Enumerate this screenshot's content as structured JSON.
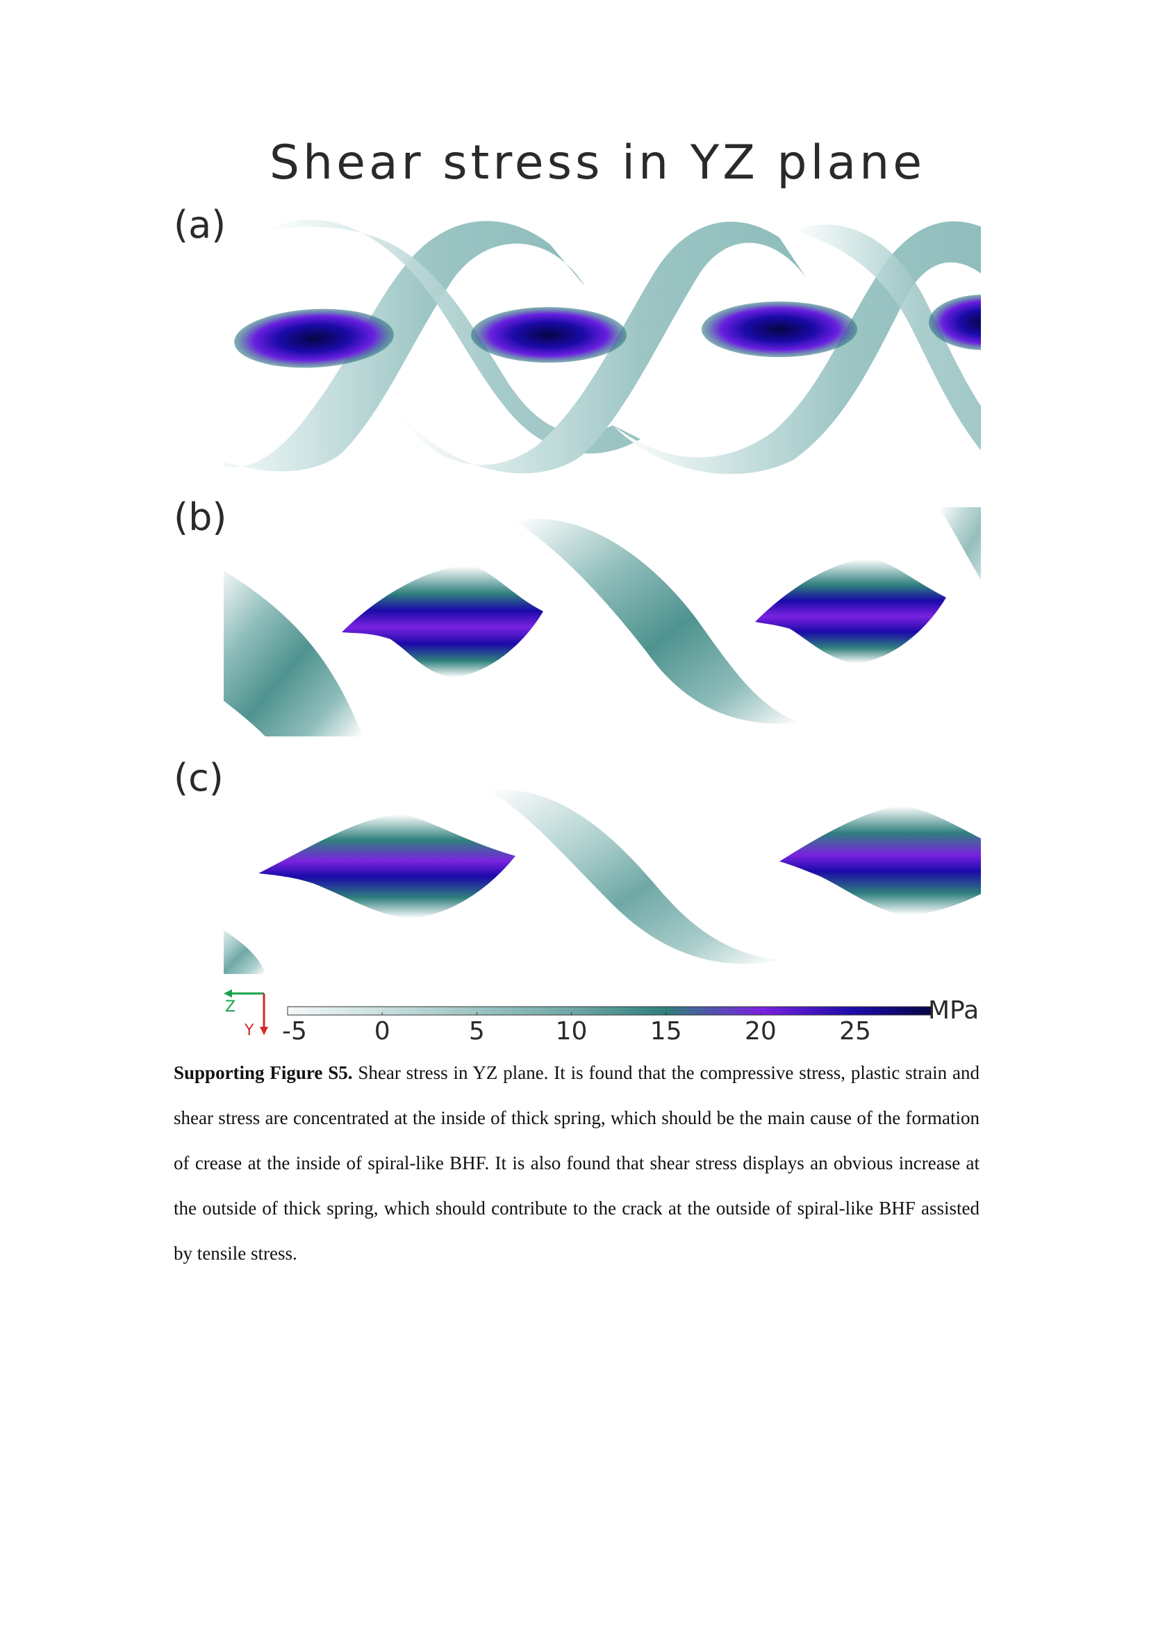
{
  "figure": {
    "title": "Shear stress in YZ plane",
    "panels": [
      {
        "label": "(a)"
      },
      {
        "label": "(b)"
      },
      {
        "label": "(c)"
      }
    ],
    "axes": {
      "horizontal": "Z",
      "vertical": "Y"
    },
    "colorbar": {
      "unit": "MPa",
      "ticks": [
        "-5",
        "0",
        "5",
        "10",
        "15",
        "20",
        "25"
      ],
      "range": [
        -5,
        29
      ],
      "stops": [
        {
          "value": -5,
          "color": "#f4f8f8"
        },
        {
          "value": 0,
          "color": "#c9dfdf"
        },
        {
          "value": 10,
          "color": "#6fa8a6"
        },
        {
          "value": 15,
          "color": "#2f7f7d"
        },
        {
          "value": 20,
          "color": "#7a22e0"
        },
        {
          "value": 25,
          "color": "#1a0aa8"
        },
        {
          "value": 29,
          "color": "#050545"
        }
      ]
    }
  },
  "caption": {
    "label": "Supporting Figure S5.",
    "text": " Shear stress in YZ plane. It is found that the compressive stress, plastic strain and shear stress are concentrated at the inside of thick spring, which should be the main cause of the formation of crease at the inside of spiral-like BHF. It is also found that shear stress displays an obvious increase at the outside of thick spring, which should contribute to the crack at the outside of spiral-like BHF assisted by tensile stress."
  }
}
